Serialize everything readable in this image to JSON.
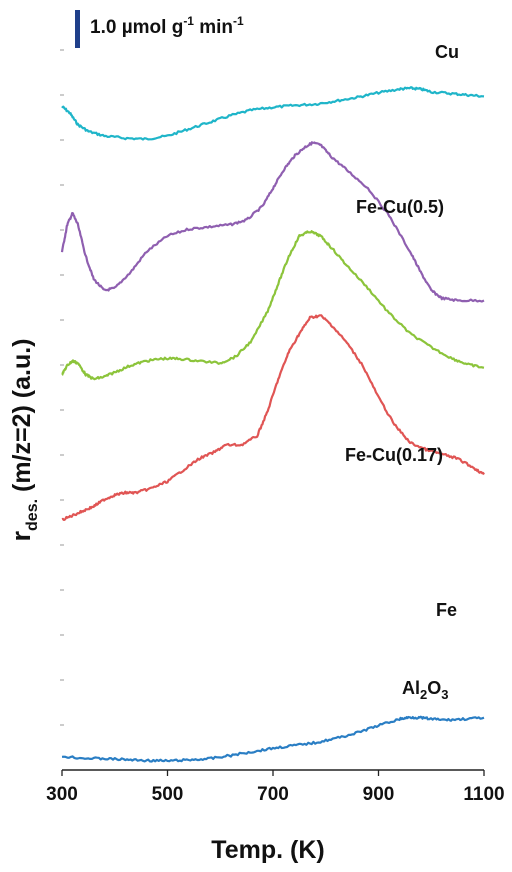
{
  "chart_data": {
    "type": "line",
    "title": "",
    "xlabel": "Temp. (K)",
    "ylabel": {
      "base": "r",
      "subscript": "des.",
      "rest": " (m/z=2) (a.u.)"
    },
    "xlim": [
      300,
      1100
    ],
    "x_ticks": [
      "300",
      "500",
      "700",
      "900",
      "1100"
    ],
    "y_units": "arbitrary (stacked, vertically offset traces)",
    "ylim": [
      0,
      16.5
    ],
    "grid": false,
    "legend": "none; each trace labelled directly",
    "scale_bar": {
      "text": "1.0 µmol g",
      "superscript_1": "-1",
      "text_2": " min",
      "superscript_2": "-1",
      "value": 1.0,
      "color": "#1f3f8a"
    },
    "series": [
      {
        "name": "Cu",
        "color": "#1fb5c9",
        "x": [
          300,
          315,
          330,
          350,
          380,
          420,
          460,
          500,
          540,
          580,
          620,
          660,
          700,
          740,
          780,
          820,
          860,
          900,
          940,
          960,
          980,
          1000,
          1040,
          1070,
          1100
        ],
        "y": [
          14.6,
          14.45,
          14.2,
          14.05,
          13.95,
          13.9,
          13.88,
          13.95,
          14.1,
          14.25,
          14.4,
          14.52,
          14.58,
          14.62,
          14.65,
          14.72,
          14.8,
          14.9,
          14.98,
          15.0,
          14.98,
          14.92,
          14.88,
          14.85,
          14.82
        ]
      },
      {
        "name": "Fe-Cu(0.5)",
        "color": "#8f5fb0",
        "x": [
          300,
          310,
          320,
          330,
          345,
          360,
          380,
          400,
          430,
          460,
          500,
          540,
          580,
          620,
          650,
          680,
          700,
          720,
          740,
          760,
          775,
          790,
          810,
          840,
          880,
          920,
          960,
          980,
          1000,
          1020,
          1050,
          1100
        ],
        "y": [
          11.4,
          12.0,
          12.25,
          12.0,
          11.3,
          10.8,
          10.55,
          10.6,
          10.95,
          11.4,
          11.75,
          11.9,
          11.95,
          12.0,
          12.1,
          12.4,
          12.8,
          13.2,
          13.5,
          13.7,
          13.8,
          13.75,
          13.5,
          13.2,
          12.8,
          12.2,
          11.4,
          10.95,
          10.55,
          10.38,
          10.33,
          10.33
        ]
      },
      {
        "name": "Fe-Cu(0.17)",
        "color": "#8cc43b",
        "x": [
          300,
          310,
          320,
          330,
          345,
          360,
          380,
          400,
          430,
          460,
          490,
          520,
          560,
          600,
          630,
          660,
          690,
          710,
          730,
          750,
          770,
          790,
          810,
          840,
          880,
          920,
          960,
          1000,
          1040,
          1070,
          1100
        ],
        "y": [
          8.7,
          8.9,
          9.0,
          8.95,
          8.7,
          8.6,
          8.65,
          8.75,
          8.9,
          9.0,
          9.05,
          9.05,
          9.0,
          8.95,
          9.1,
          9.45,
          10.1,
          10.7,
          11.3,
          11.75,
          11.85,
          11.75,
          11.5,
          11.1,
          10.6,
          10.05,
          9.6,
          9.3,
          9.05,
          8.92,
          8.85
        ]
      },
      {
        "name": "Fe",
        "color": "#e05554",
        "x": [
          300,
          320,
          340,
          360,
          380,
          400,
          420,
          440,
          470,
          500,
          530,
          560,
          590,
          610,
          640,
          670,
          690,
          710,
          730,
          750,
          770,
          790,
          810,
          840,
          870,
          900,
          930,
          960,
          990,
          1020,
          1050,
          1080,
          1100
        ],
        "y": [
          5.5,
          5.6,
          5.7,
          5.8,
          5.95,
          6.05,
          6.1,
          6.1,
          6.2,
          6.35,
          6.6,
          6.85,
          7.0,
          7.15,
          7.15,
          7.35,
          7.9,
          8.6,
          9.2,
          9.6,
          9.95,
          10.0,
          9.8,
          9.4,
          8.9,
          8.2,
          7.6,
          7.2,
          7.05,
          6.95,
          6.85,
          6.65,
          6.5
        ]
      },
      {
        "name": "Al₂O₃",
        "color": "#2a7ec4",
        "x": [
          300,
          340,
          380,
          420,
          460,
          500,
          540,
          580,
          620,
          660,
          700,
          740,
          780,
          820,
          860,
          900,
          940,
          960,
          980,
          1000,
          1030,
          1060,
          1100
        ],
        "y": [
          0.3,
          0.26,
          0.25,
          0.23,
          0.21,
          0.2,
          0.22,
          0.25,
          0.32,
          0.4,
          0.48,
          0.54,
          0.6,
          0.7,
          0.82,
          0.98,
          1.12,
          1.16,
          1.15,
          1.12,
          1.1,
          1.12,
          1.15
        ]
      }
    ]
  },
  "labels": {
    "cu": "Cu",
    "fecu05": "Fe-Cu(0.5)",
    "fecu017": "Fe-Cu(0.17)",
    "fe": "Fe",
    "al2o3_a": "Al",
    "al2o3_b": "2",
    "al2o3_c": "O",
    "al2o3_d": "3"
  }
}
